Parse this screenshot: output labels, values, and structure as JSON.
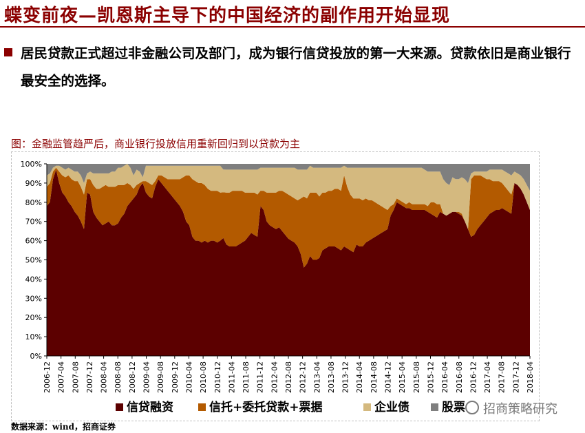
{
  "header": {
    "title": "蝶变前夜—凯恩斯主导下的中国经济的副作用开始显现"
  },
  "bullet": {
    "text": "居民贷款正式超过非金融公司及部门，成为银行信贷投放的第一大来源。贷款依旧是商业银行最安全的选择。"
  },
  "chart": {
    "caption": "图：金融监管趋严后，商业银行投放信用重新回归到以贷款为主",
    "source": "数据来源：wind，招商证券",
    "watermark": "招商策略研究"
  },
  "chart_data": {
    "type": "area",
    "stacked": true,
    "percent": true,
    "ylim": [
      0,
      100
    ],
    "yticks": [
      "0%",
      "10%",
      "20%",
      "30%",
      "40%",
      "50%",
      "60%",
      "70%",
      "80%",
      "90%",
      "100%"
    ],
    "xticks": [
      "2006-12",
      "2007-04",
      "2007-08",
      "2007-12",
      "2008-04",
      "2008-08",
      "2008-12",
      "2009-04",
      "2009-08",
      "2009-12",
      "2010-04",
      "2010-08",
      "2010-12",
      "2011-04",
      "2011-08",
      "2011-12",
      "2012-04",
      "2012-08",
      "2012-12",
      "2013-04",
      "2013-08",
      "2013-12",
      "2014-04",
      "2014-08",
      "2014-12",
      "2015-04",
      "2015-08",
      "2015-12",
      "2016-04",
      "2016-08",
      "2016-12",
      "2017-04",
      "2017-08",
      "2017-12",
      "2018-04"
    ],
    "legend_position": "bottom",
    "colors": {
      "loans": "#5c0000",
      "trust": "#b35a00",
      "bonds": "#d4b97f",
      "equity": "#7f7f7f"
    },
    "series": [
      {
        "name": "信贷融资",
        "key": "loans",
        "values": [
          78,
          80,
          92,
          97,
          90,
          85,
          83,
          80,
          78,
          75,
          73,
          70,
          66,
          85,
          84,
          75,
          72,
          70,
          68,
          69,
          70,
          68,
          68,
          69,
          72,
          74,
          78,
          80,
          82,
          84,
          88,
          90,
          85,
          83,
          82,
          88,
          92,
          90,
          88,
          86,
          84,
          82,
          80,
          78,
          75,
          70,
          68,
          62,
          60,
          60,
          59,
          60,
          59,
          60,
          60,
          59,
          60,
          62,
          58,
          57,
          57,
          57,
          58,
          59,
          60,
          62,
          64,
          63,
          62,
          78,
          76,
          70,
          68,
          67,
          66,
          67,
          65,
          63,
          61,
          60,
          59,
          57,
          53,
          46,
          48,
          52,
          50,
          50,
          51,
          55,
          56,
          57,
          57,
          57,
          56,
          55,
          57,
          56,
          55,
          54,
          58,
          57,
          57,
          59,
          60,
          61,
          62,
          63,
          64,
          65,
          66,
          73,
          76,
          80,
          79,
          78,
          77,
          77,
          76,
          76,
          76,
          76,
          76,
          75,
          74,
          73,
          72,
          75,
          74,
          73,
          74,
          75,
          75,
          74,
          73,
          70,
          66,
          62,
          63,
          66,
          68,
          70,
          72,
          74,
          75,
          76,
          76,
          77,
          76,
          75,
          74,
          90,
          89,
          87,
          84,
          80,
          76
        ]
      },
      {
        "name": "信托+委托贷款+票据",
        "key": "trust",
        "values": [
          10,
          10,
          4,
          1,
          6,
          9,
          10,
          14,
          14,
          16,
          18,
          18,
          18,
          7,
          8,
          14,
          15,
          17,
          20,
          20,
          18,
          20,
          20,
          20,
          17,
          15,
          12,
          9,
          5,
          5,
          2,
          1,
          6,
          7,
          7,
          3,
          2,
          4,
          5,
          6,
          8,
          10,
          12,
          14,
          18,
          24,
          26,
          30,
          31,
          30,
          31,
          29,
          28,
          26,
          26,
          27,
          25,
          24,
          27,
          28,
          29,
          29,
          28,
          27,
          25,
          23,
          21,
          22,
          22,
          8,
          10,
          15,
          17,
          18,
          19,
          19,
          21,
          22,
          23,
          23,
          23,
          24,
          29,
          37,
          34,
          33,
          35,
          35,
          32,
          30,
          29,
          29,
          29,
          30,
          31,
          31,
          37,
          32,
          29,
          28,
          24,
          25,
          24,
          23,
          21,
          20,
          18,
          16,
          14,
          12,
          10,
          5,
          3,
          2,
          2,
          2,
          2,
          3,
          3,
          3,
          3,
          3,
          3,
          3,
          6,
          7,
          7,
          4,
          0,
          0,
          0,
          0,
          0,
          1,
          1,
          0,
          0,
          30,
          31,
          28,
          26,
          23,
          20,
          18,
          16,
          15,
          15,
          13,
          12,
          11,
          10,
          0,
          0,
          0,
          0,
          0,
          0
        ]
      },
      {
        "name": "企业债",
        "key": "bonds",
        "values": [
          6,
          5,
          2,
          1,
          3,
          4,
          4,
          4,
          5,
          5,
          5,
          6,
          6,
          3,
          4,
          6,
          8,
          8,
          7,
          6,
          7,
          8,
          8,
          9,
          9,
          10,
          10,
          9,
          7,
          8,
          6,
          2,
          8,
          9,
          10,
          8,
          5,
          5,
          6,
          7,
          7,
          7,
          7,
          7,
          6,
          5,
          5,
          7,
          8,
          9,
          9,
          10,
          12,
          13,
          13,
          13,
          14,
          12,
          12,
          12,
          11,
          11,
          11,
          11,
          12,
          12,
          12,
          12,
          13,
          12,
          12,
          13,
          13,
          13,
          13,
          12,
          12,
          13,
          14,
          15,
          16,
          16,
          15,
          14,
          15,
          14,
          13,
          13,
          15,
          13,
          13,
          12,
          12,
          11,
          11,
          12,
          5,
          10,
          14,
          16,
          16,
          16,
          17,
          16,
          17,
          17,
          18,
          19,
          20,
          21,
          22,
          20,
          19,
          16,
          17,
          18,
          19,
          18,
          19,
          19,
          19,
          19,
          18,
          18,
          16,
          16,
          17,
          17,
          18,
          17,
          15,
          18,
          17,
          17,
          19,
          22,
          24,
          3,
          2,
          2,
          2,
          3,
          4,
          5,
          6,
          6,
          6,
          7,
          8,
          9,
          10,
          6,
          6,
          7,
          8,
          9,
          10
        ]
      },
      {
        "name": "股票",
        "key": "equity",
        "values": [
          6,
          5,
          2,
          1,
          1,
          2,
          3,
          2,
          3,
          4,
          4,
          6,
          10,
          5,
          4,
          5,
          5,
          5,
          5,
          5,
          5,
          4,
          4,
          2,
          2,
          1,
          0,
          2,
          6,
          3,
          4,
          7,
          1,
          1,
          1,
          1,
          1,
          1,
          1,
          1,
          1,
          1,
          1,
          1,
          1,
          1,
          1,
          1,
          1,
          1,
          1,
          1,
          1,
          1,
          1,
          1,
          1,
          3,
          3,
          3,
          3,
          3,
          3,
          3,
          3,
          3,
          3,
          3,
          3,
          2,
          2,
          2,
          2,
          2,
          2,
          2,
          2,
          2,
          2,
          2,
          2,
          3,
          3,
          3,
          3,
          1,
          2,
          2,
          2,
          2,
          2,
          2,
          2,
          2,
          2,
          2,
          1,
          2,
          2,
          2,
          2,
          2,
          2,
          2,
          2,
          2,
          2,
          2,
          2,
          2,
          2,
          2,
          2,
          2,
          2,
          2,
          2,
          2,
          2,
          2,
          2,
          2,
          3,
          4,
          4,
          4,
          4,
          4,
          8,
          10,
          11,
          7,
          8,
          8,
          7,
          8,
          10,
          5,
          4,
          4,
          4,
          4,
          4,
          3,
          3,
          3,
          3,
          3,
          4,
          5,
          6,
          4,
          5,
          6,
          8,
          11,
          14
        ]
      }
    ]
  }
}
